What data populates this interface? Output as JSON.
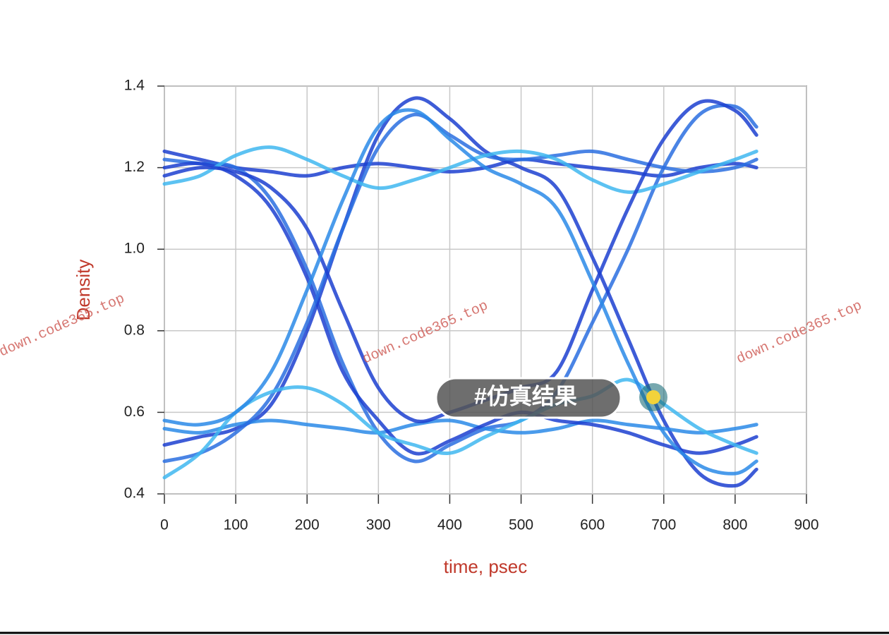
{
  "chart_data": {
    "type": "eye",
    "xlabel": "time, psec",
    "ylabel": "Density",
    "xlim": [
      0,
      900
    ],
    "ylim": [
      0.4,
      1.4
    ],
    "xticks": [
      0,
      100,
      200,
      300,
      400,
      500,
      600,
      700,
      800,
      900
    ],
    "yticks": [
      0.4,
      0.6,
      0.8,
      {
        "value": 1,
        "label": "1.0"
      },
      1.2,
      1.4
    ],
    "grid": true,
    "x": [
      0,
      50,
      100,
      150,
      200,
      250,
      300,
      350,
      400,
      450,
      500,
      550,
      600,
      650,
      700,
      750,
      800,
      830
    ],
    "series": [
      {
        "color": "#1c3fd0",
        "values": [
          1.24,
          1.22,
          1.2,
          1.19,
          1.18,
          1.2,
          1.21,
          1.2,
          1.19,
          1.2,
          1.22,
          1.21,
          1.2,
          1.19,
          1.18,
          1.2,
          1.21,
          1.2
        ]
      },
      {
        "color": "#2a6fe0",
        "values": [
          1.22,
          1.21,
          1.2,
          1.12,
          0.95,
          0.72,
          0.55,
          0.48,
          0.52,
          0.56,
          0.58,
          0.65,
          0.82,
          1.0,
          1.2,
          1.33,
          1.35,
          1.3
        ]
      },
      {
        "color": "#1c3fd0",
        "values": [
          0.52,
          0.54,
          0.56,
          0.62,
          0.8,
          1.05,
          1.28,
          1.37,
          1.32,
          1.24,
          1.2,
          1.15,
          0.98,
          0.78,
          0.58,
          0.45,
          0.42,
          0.46
        ]
      },
      {
        "color": "#2a8ae8",
        "values": [
          0.56,
          0.55,
          0.57,
          0.58,
          0.57,
          0.56,
          0.55,
          0.57,
          0.58,
          0.56,
          0.55,
          0.56,
          0.58,
          0.57,
          0.56,
          0.55,
          0.56,
          0.57
        ]
      },
      {
        "color": "#1c3fd0",
        "values": [
          1.2,
          1.21,
          1.18,
          1.1,
          0.93,
          0.7,
          0.58,
          0.5,
          0.53,
          0.57,
          0.6,
          0.58,
          0.57,
          0.55,
          0.52,
          0.5,
          0.52,
          0.54
        ]
      },
      {
        "color": "#2a6fe0",
        "values": [
          0.48,
          0.5,
          0.55,
          0.64,
          0.82,
          1.05,
          1.25,
          1.33,
          1.28,
          1.23,
          1.22,
          1.23,
          1.24,
          1.22,
          1.2,
          1.19,
          1.2,
          1.22
        ]
      },
      {
        "color": "#3fb7f0",
        "values": [
          1.16,
          1.18,
          1.23,
          1.25,
          1.22,
          1.18,
          1.15,
          1.17,
          1.2,
          1.23,
          1.24,
          1.22,
          1.17,
          1.14,
          1.16,
          1.19,
          1.22,
          1.24
        ]
      },
      {
        "color": "#3fb7f0",
        "values": [
          0.44,
          0.5,
          0.6,
          0.65,
          0.66,
          0.62,
          0.55,
          0.52,
          0.5,
          0.54,
          0.58,
          0.62,
          0.64,
          0.68,
          0.62,
          0.56,
          0.52,
          0.5
        ]
      },
      {
        "color": "#1c3fd0",
        "values": [
          1.18,
          1.2,
          1.19,
          1.15,
          1.05,
          0.85,
          0.66,
          0.58,
          0.6,
          0.63,
          0.66,
          0.7,
          0.9,
          1.1,
          1.27,
          1.36,
          1.34,
          1.28
        ]
      },
      {
        "color": "#2a8ae8",
        "values": [
          0.58,
          0.57,
          0.6,
          0.7,
          0.9,
          1.12,
          1.3,
          1.34,
          1.27,
          1.2,
          1.16,
          1.1,
          0.92,
          0.72,
          0.55,
          0.47,
          0.45,
          0.48
        ]
      }
    ],
    "annotations": [
      "down.code365.top",
      "down.code365.top",
      "down.code365.top"
    ],
    "badge": "#仿真结果"
  }
}
